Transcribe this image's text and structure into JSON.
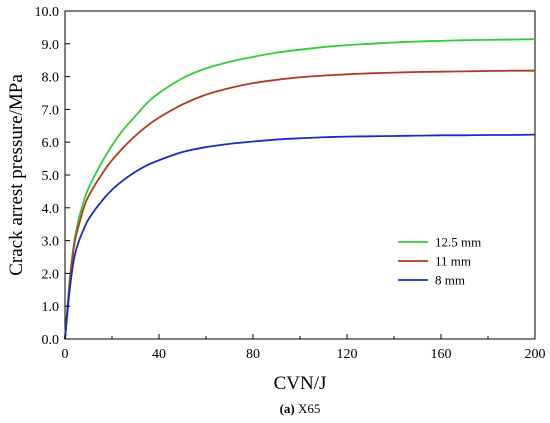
{
  "chart_data": {
    "type": "line",
    "xlabel": "CVN/J",
    "ylabel": "Crack arrest pressure/MPa",
    "xlim": [
      0,
      200
    ],
    "ylim": [
      0,
      10
    ],
    "x_ticks": [
      "0",
      "40",
      "80",
      "120",
      "160",
      "200"
    ],
    "y_ticks": [
      "0.0",
      "1.0",
      "2.0",
      "3.0",
      "4.0",
      "5.0",
      "6.0",
      "7.0",
      "8.0",
      "9.0",
      "10.0"
    ],
    "grid": false,
    "legend_position": "lower-right",
    "series": [
      {
        "name": "12.5 mm",
        "color": "#33cc33",
        "x": [
          0,
          2,
          4,
          6,
          8,
          10,
          15,
          20,
          25,
          30,
          35,
          40,
          50,
          60,
          70,
          80,
          90,
          100,
          110,
          120,
          130,
          140,
          150,
          160,
          170,
          180,
          190,
          200
        ],
        "y": [
          0,
          1.8,
          3.0,
          3.7,
          4.2,
          4.6,
          5.3,
          5.9,
          6.4,
          6.8,
          7.2,
          7.5,
          7.95,
          8.25,
          8.45,
          8.6,
          8.73,
          8.82,
          8.9,
          8.96,
          9.0,
          9.04,
          9.07,
          9.09,
          9.11,
          9.12,
          9.13,
          9.14
        ]
      },
      {
        "name": "11 mm",
        "color": "#b03a1e",
        "x": [
          0,
          2,
          4,
          6,
          8,
          10,
          15,
          20,
          25,
          30,
          35,
          40,
          50,
          60,
          70,
          80,
          90,
          100,
          110,
          120,
          130,
          140,
          150,
          160,
          170,
          180,
          190,
          200
        ],
        "y": [
          0,
          1.7,
          2.9,
          3.5,
          4.0,
          4.35,
          4.95,
          5.45,
          5.85,
          6.2,
          6.5,
          6.75,
          7.15,
          7.45,
          7.65,
          7.8,
          7.9,
          7.98,
          8.03,
          8.07,
          8.1,
          8.12,
          8.14,
          8.15,
          8.16,
          8.17,
          8.18,
          8.18
        ]
      },
      {
        "name": "8 mm",
        "color": "#1a2bc2",
        "x": [
          0,
          2,
          4,
          6,
          8,
          10,
          15,
          20,
          25,
          30,
          35,
          40,
          50,
          60,
          70,
          80,
          90,
          100,
          110,
          120,
          130,
          140,
          150,
          160,
          170,
          180,
          190,
          200
        ],
        "y": [
          0,
          1.5,
          2.5,
          3.0,
          3.35,
          3.65,
          4.15,
          4.55,
          4.85,
          5.1,
          5.3,
          5.45,
          5.7,
          5.85,
          5.95,
          6.02,
          6.08,
          6.12,
          6.15,
          6.17,
          6.18,
          6.19,
          6.2,
          6.21,
          6.21,
          6.22,
          6.22,
          6.23
        ]
      }
    ]
  },
  "caption": {
    "prefix": "(a)",
    "text": " X65"
  }
}
